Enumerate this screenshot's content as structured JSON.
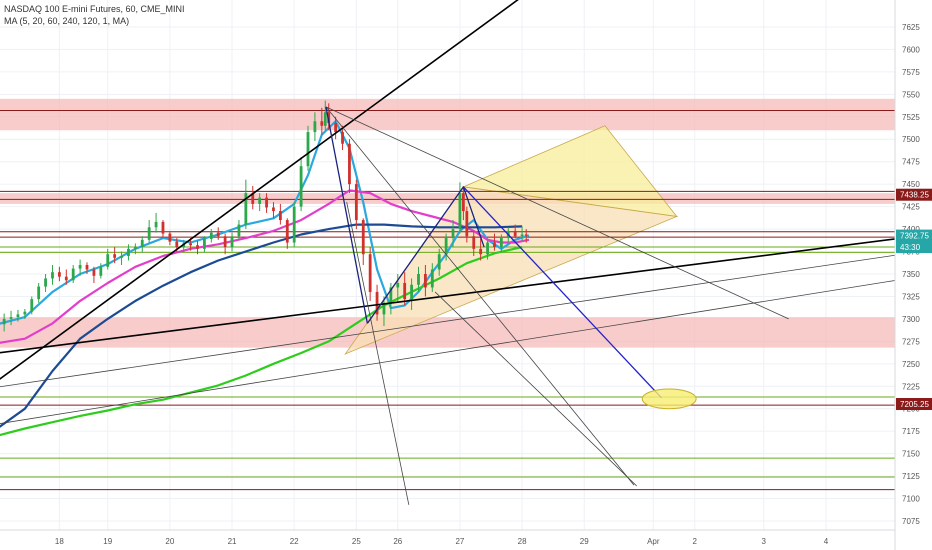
{
  "legend": {
    "symbol": "NASDAQ 100 E-mini Futures, 60, CME_MINI",
    "indicator": "MA (5, 20, 60, 240, 120, 1, MA)"
  },
  "chart_data": {
    "type": "candlestick",
    "price_axis": {
      "ylim": [
        7065,
        7655
      ],
      "ticks": [
        7625,
        7600,
        7575,
        7550,
        7525,
        7500,
        7475,
        7450,
        7425,
        7400,
        7375,
        7350,
        7325,
        7300,
        7275,
        7250,
        7225,
        7200,
        7175,
        7150,
        7125,
        7100,
        7075
      ]
    },
    "time_axis": {
      "labels": [
        "18",
        "19",
        "20",
        "21",
        "22",
        "25",
        "26",
        "27",
        "28",
        "29",
        "Apr",
        "2",
        "3",
        "4"
      ],
      "positions": [
        0,
        7,
        16,
        25,
        34,
        43,
        49,
        58,
        67,
        76,
        86,
        92,
        102,
        111
      ],
      "xlim": [
        -8.6,
        121
      ]
    },
    "price_tags": [
      {
        "label": "7438.25",
        "price": 7438.25,
        "color": "#8b1a1a"
      },
      {
        "label": "7392.75",
        "price": 7392.75,
        "color": "#26a6a6"
      },
      {
        "label": "43:30",
        "price": 7380,
        "color": "#26a6a6"
      },
      {
        "label": "7205.25",
        "price": 7205.25,
        "color": "#8b1a1a"
      }
    ],
    "zones": [
      {
        "from": 7510,
        "to": 7545
      },
      {
        "from": 7428,
        "to": 7440
      },
      {
        "from": 7268,
        "to": 7302
      }
    ],
    "horizontal_lines": [
      {
        "price": 7532,
        "color": "#8b1a1a"
      },
      {
        "price": 7442,
        "color": "#8b1a1a"
      },
      {
        "price": 7433,
        "color": "#8b1a1a"
      },
      {
        "price": 7397,
        "color": "#8b1a1a"
      },
      {
        "price": 7391,
        "color": "#8b1a1a"
      },
      {
        "price": 7380,
        "color": "#6aaa1a"
      },
      {
        "price": 7374,
        "color": "#6aaa1a"
      },
      {
        "price": 7213,
        "color": "#6aaa1a"
      },
      {
        "price": 7204,
        "color": "#8b1a1a"
      },
      {
        "price": 7145,
        "color": "#6aaa1a"
      },
      {
        "price": 7124,
        "color": "#6aaa1a"
      },
      {
        "price": 7110,
        "color": "#8b1a1a"
      }
    ],
    "trend_lines": [
      {
        "points": [
          [
            -9,
            7231
          ],
          [
            69,
            7670
          ]
        ],
        "color": "#000000"
      },
      {
        "points": [
          [
            -9,
            7262
          ],
          [
            122,
            7390
          ]
        ],
        "color": "#000000"
      },
      {
        "points": [
          [
            -9,
            7183
          ],
          [
            122,
            7344
          ]
        ],
        "color": "#444444"
      },
      {
        "points": [
          [
            -9,
            7224
          ],
          [
            122,
            7372
          ]
        ],
        "color": "#444444"
      },
      {
        "points": [
          [
            38.6,
            7536
          ],
          [
            105.6,
            7300
          ]
        ],
        "color": "#444444"
      },
      {
        "points": [
          [
            38.6,
            7536
          ],
          [
            83.2,
            7115
          ]
        ],
        "color": "#444444"
      },
      {
        "points": [
          [
            41.6,
            7430
          ],
          [
            50.6,
            7093
          ]
        ],
        "color": "#444444"
      },
      {
        "points": [
          [
            54.4,
            7330
          ],
          [
            83.6,
            7114
          ]
        ],
        "color": "#444444"
      },
      {
        "points": [
          [
            38.6,
            7536
          ],
          [
            44.6,
            7295
          ]
        ],
        "color": "#1a237e"
      },
      {
        "points": [
          [
            44.6,
            7295
          ],
          [
            58.5,
            7447
          ]
        ],
        "color": "#1a237e"
      },
      {
        "points": [
          [
            58.5,
            7447
          ],
          [
            61.5,
            7380
          ]
        ],
        "color": "#1a237e"
      },
      {
        "points": [
          [
            58.5,
            7447
          ],
          [
            87.2,
            7212
          ]
        ],
        "color": "#2222cc"
      }
    ],
    "ellipse": {
      "cx": 88.3,
      "cy": 7211,
      "rx": 3.9,
      "ry": 11
    },
    "triangles": [
      {
        "points": [
          [
            58.5,
            7447
          ],
          [
            79.0,
            7515
          ],
          [
            89.4,
            7414
          ]
        ],
        "fill": "#f7ee9a"
      },
      {
        "points": [
          [
            41.4,
            7261
          ],
          [
            58.5,
            7447
          ],
          [
            89.4,
            7414
          ]
        ],
        "fill": "#f8dfb4"
      }
    ],
    "series": [
      {
        "name": "MA 5",
        "color": "#2aa8e0",
        "points": [
          [
            -9,
            7294
          ],
          [
            -5,
            7302
          ],
          [
            -1,
            7330
          ],
          [
            3,
            7350
          ],
          [
            7,
            7361
          ],
          [
            11,
            7378
          ],
          [
            15,
            7390
          ],
          [
            19,
            7385
          ],
          [
            23,
            7394
          ],
          [
            27,
            7405
          ],
          [
            31,
            7412
          ],
          [
            34,
            7428
          ],
          [
            36,
            7460
          ],
          [
            38,
            7505
          ],
          [
            40,
            7520
          ],
          [
            42,
            7490
          ],
          [
            44,
            7430
          ],
          [
            46,
            7355
          ],
          [
            48,
            7312
          ],
          [
            50,
            7315
          ],
          [
            52,
            7330
          ],
          [
            54,
            7352
          ],
          [
            56,
            7372
          ],
          [
            58,
            7398
          ],
          [
            60,
            7410
          ],
          [
            62,
            7388
          ],
          [
            64,
            7378
          ],
          [
            66,
            7388
          ],
          [
            68,
            7393
          ]
        ]
      },
      {
        "name": "MA 20",
        "color": "#e23ecb",
        "points": [
          [
            -9,
            7273
          ],
          [
            -5,
            7278
          ],
          [
            -1,
            7295
          ],
          [
            3,
            7320
          ],
          [
            7,
            7340
          ],
          [
            11,
            7358
          ],
          [
            15,
            7370
          ],
          [
            19,
            7378
          ],
          [
            23,
            7383
          ],
          [
            27,
            7390
          ],
          [
            31,
            7398
          ],
          [
            35,
            7410
          ],
          [
            39,
            7428
          ],
          [
            42,
            7443
          ],
          [
            45,
            7440
          ],
          [
            48,
            7428
          ],
          [
            51,
            7420
          ],
          [
            54,
            7414
          ],
          [
            57,
            7408
          ],
          [
            60,
            7398
          ],
          [
            62,
            7388
          ],
          [
            64,
            7385
          ],
          [
            66,
            7385
          ],
          [
            68,
            7388
          ]
        ]
      },
      {
        "name": "MA 60",
        "color": "#1c4b94",
        "points": [
          [
            -9,
            7178
          ],
          [
            -5,
            7200
          ],
          [
            -1,
            7242
          ],
          [
            3,
            7278
          ],
          [
            7,
            7300
          ],
          [
            11,
            7320
          ],
          [
            15,
            7337
          ],
          [
            19,
            7352
          ],
          [
            23,
            7365
          ],
          [
            27,
            7375
          ],
          [
            31,
            7385
          ],
          [
            35,
            7394
          ],
          [
            39,
            7400
          ],
          [
            43,
            7405
          ],
          [
            47,
            7405
          ],
          [
            51,
            7403
          ],
          [
            55,
            7402
          ],
          [
            59,
            7402
          ],
          [
            63,
            7402
          ],
          [
            67,
            7403
          ]
        ]
      },
      {
        "name": "MA 240",
        "color": "#2ecc1c",
        "points": [
          [
            -9,
            7170
          ],
          [
            -5,
            7178
          ],
          [
            -1,
            7185
          ],
          [
            3,
            7192
          ],
          [
            7,
            7198
          ],
          [
            11,
            7205
          ],
          [
            15,
            7210
          ],
          [
            19,
            7218
          ],
          [
            23,
            7226
          ],
          [
            27,
            7237
          ],
          [
            31,
            7250
          ],
          [
            35,
            7262
          ],
          [
            39,
            7275
          ],
          [
            43,
            7295
          ],
          [
            47,
            7315
          ],
          [
            51,
            7330
          ],
          [
            55,
            7345
          ],
          [
            59,
            7362
          ],
          [
            63,
            7373
          ],
          [
            67,
            7380
          ]
        ]
      }
    ],
    "candles": [
      [
        -8,
        7294,
        7306,
        7286,
        7300
      ],
      [
        -7,
        7300,
        7309,
        7293,
        7302
      ],
      [
        -6,
        7302,
        7310,
        7297,
        7305
      ],
      [
        -5,
        7305,
        7311,
        7300,
        7308
      ],
      [
        -4,
        7308,
        7325,
        7305,
        7322
      ],
      [
        -3,
        7322,
        7340,
        7318,
        7336
      ],
      [
        -2,
        7336,
        7350,
        7330,
        7345
      ],
      [
        -1,
        7345,
        7360,
        7338,
        7352
      ],
      [
        0,
        7352,
        7358,
        7342,
        7347
      ],
      [
        1,
        7347,
        7355,
        7338,
        7343
      ],
      [
        2,
        7343,
        7360,
        7340,
        7356
      ],
      [
        3,
        7356,
        7366,
        7348,
        7360
      ],
      [
        4,
        7360,
        7363,
        7350,
        7355
      ],
      [
        5,
        7355,
        7358,
        7340,
        7348
      ],
      [
        6,
        7348,
        7362,
        7345,
        7358
      ],
      [
        7,
        7358,
        7378,
        7355,
        7372
      ],
      [
        8,
        7372,
        7380,
        7362,
        7368
      ],
      [
        9,
        7368,
        7375,
        7360,
        7370
      ],
      [
        10,
        7370,
        7383,
        7365,
        7378
      ],
      [
        11,
        7378,
        7384,
        7372,
        7380
      ],
      [
        12,
        7380,
        7392,
        7374,
        7388
      ],
      [
        13,
        7388,
        7410,
        7385,
        7402
      ],
      [
        14,
        7402,
        7418,
        7396,
        7408
      ],
      [
        15,
        7408,
        7410,
        7390,
        7395
      ],
      [
        16,
        7395,
        7398,
        7382,
        7386
      ],
      [
        17,
        7386,
        7390,
        7374,
        7380
      ],
      [
        18,
        7380,
        7388,
        7374,
        7384
      ],
      [
        19,
        7384,
        7390,
        7376,
        7382
      ],
      [
        20,
        7382,
        7387,
        7372,
        7378
      ],
      [
        21,
        7378,
        7392,
        7374,
        7389
      ],
      [
        22,
        7389,
        7400,
        7385,
        7396
      ],
      [
        23,
        7396,
        7402,
        7388,
        7392
      ],
      [
        24,
        7392,
        7395,
        7372,
        7380
      ],
      [
        25,
        7380,
        7396,
        7375,
        7392
      ],
      [
        26,
        7392,
        7410,
        7388,
        7405
      ],
      [
        27,
        7405,
        7455,
        7400,
        7440
      ],
      [
        28,
        7440,
        7448,
        7422,
        7428
      ],
      [
        29,
        7428,
        7440,
        7420,
        7435
      ],
      [
        30,
        7435,
        7440,
        7418,
        7424
      ],
      [
        31,
        7424,
        7430,
        7412,
        7420
      ],
      [
        32,
        7420,
        7428,
        7405,
        7410
      ],
      [
        33,
        7410,
        7412,
        7378,
        7385
      ],
      [
        34,
        7385,
        7430,
        7380,
        7425
      ],
      [
        35,
        7425,
        7480,
        7420,
        7470
      ],
      [
        36,
        7470,
        7515,
        7465,
        7508
      ],
      [
        37,
        7508,
        7530,
        7498,
        7520
      ],
      [
        38,
        7520,
        7535,
        7505,
        7515
      ],
      [
        38.5,
        7515,
        7543,
        7510,
        7530
      ],
      [
        39,
        7530,
        7540,
        7510,
        7518
      ],
      [
        40,
        7518,
        7525,
        7500,
        7508
      ],
      [
        41,
        7508,
        7515,
        7488,
        7495
      ],
      [
        42,
        7495,
        7500,
        7440,
        7450
      ],
      [
        43,
        7450,
        7455,
        7400,
        7410
      ],
      [
        44,
        7410,
        7412,
        7360,
        7372
      ],
      [
        45,
        7372,
        7380,
        7320,
        7330
      ],
      [
        46,
        7330,
        7338,
        7298,
        7305
      ],
      [
        47,
        7305,
        7325,
        7292,
        7318
      ],
      [
        48,
        7318,
        7340,
        7305,
        7335
      ],
      [
        49,
        7335,
        7350,
        7318,
        7340
      ],
      [
        50,
        7340,
        7352,
        7315,
        7322
      ],
      [
        51,
        7322,
        7345,
        7310,
        7338
      ],
      [
        52,
        7338,
        7358,
        7330,
        7350
      ],
      [
        53,
        7350,
        7360,
        7325,
        7335
      ],
      [
        54,
        7335,
        7362,
        7330,
        7355
      ],
      [
        55,
        7355,
        7378,
        7348,
        7372
      ],
      [
        56,
        7372,
        7395,
        7365,
        7390
      ],
      [
        57,
        7390,
        7410,
        7380,
        7400
      ],
      [
        58,
        7400,
        7452,
        7395,
        7440
      ],
      [
        58.5,
        7440,
        7448,
        7410,
        7420
      ],
      [
        59,
        7420,
        7425,
        7385,
        7392
      ],
      [
        60,
        7392,
        7398,
        7370,
        7378
      ],
      [
        61,
        7378,
        7390,
        7365,
        7372
      ],
      [
        62,
        7372,
        7388,
        7366,
        7385
      ],
      [
        63,
        7385,
        7395,
        7376,
        7380
      ],
      [
        64,
        7380,
        7394,
        7374,
        7390
      ],
      [
        65,
        7390,
        7402,
        7385,
        7398
      ],
      [
        66,
        7398,
        7405,
        7390,
        7392
      ],
      [
        67,
        7392,
        7403,
        7387,
        7394
      ],
      [
        67.6,
        7394,
        7400,
        7385,
        7393
      ]
    ]
  }
}
